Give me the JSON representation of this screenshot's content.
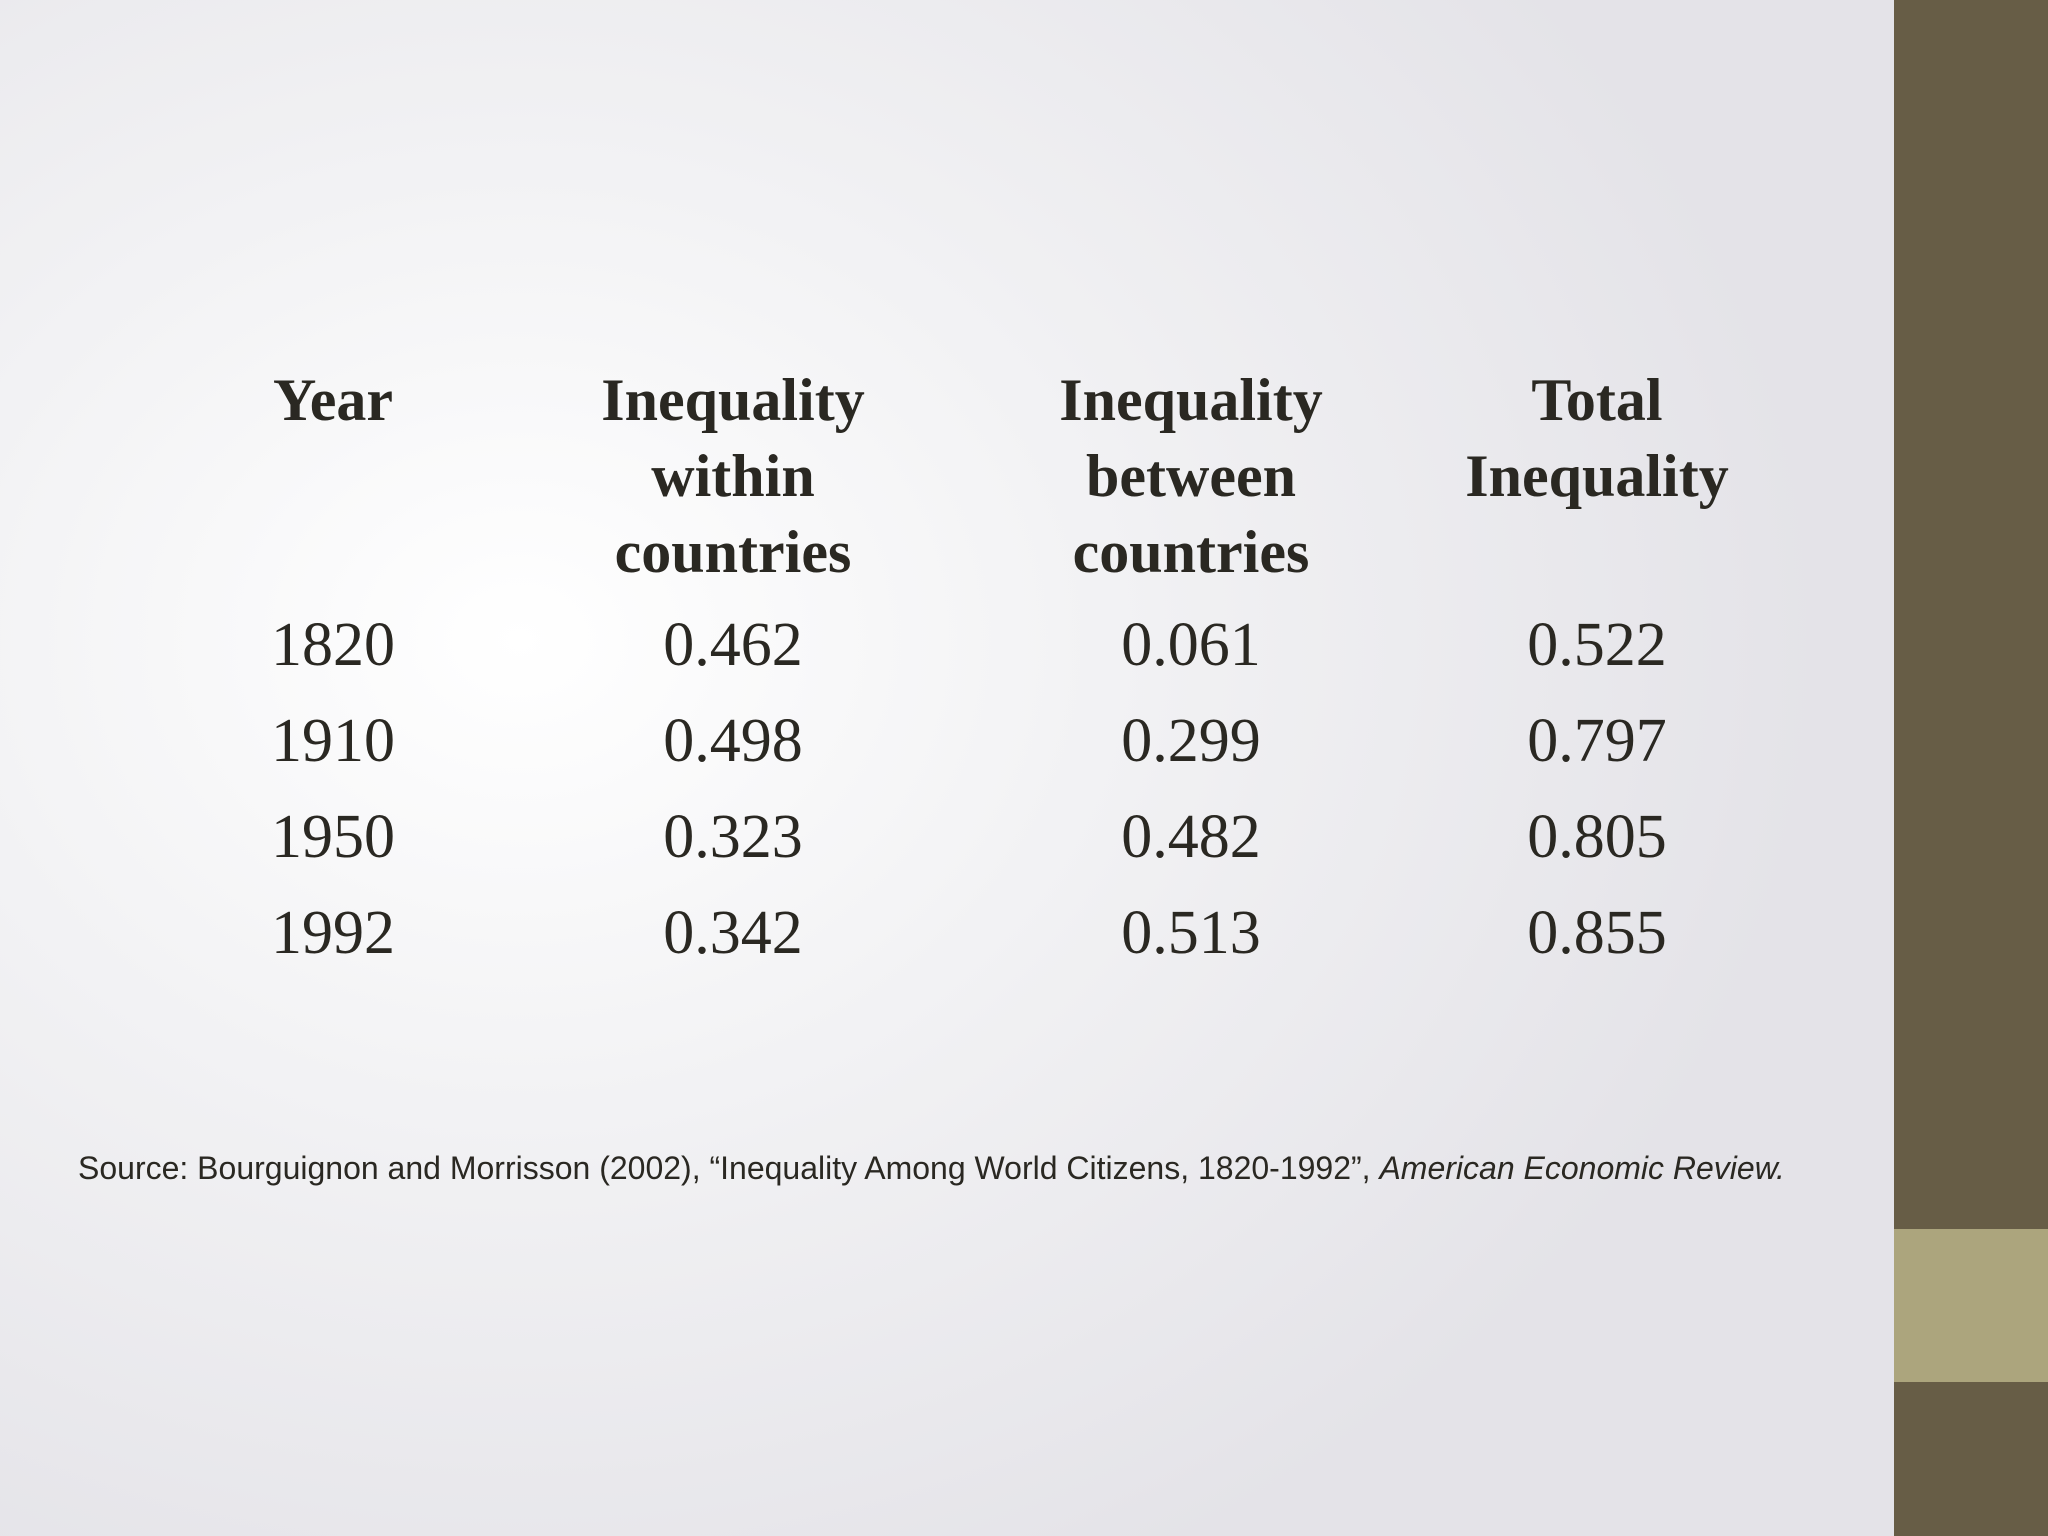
{
  "colors": {
    "side_band": "#675d46",
    "side_accent": "#aca57d",
    "text": "#2a2822"
  },
  "table": {
    "headers": [
      "Year",
      "Inequality within countries",
      "Inequality between countries",
      "Total Inequality"
    ],
    "header_lines": [
      [
        "Year"
      ],
      [
        "Inequality",
        "within",
        "countries"
      ],
      [
        "Inequality",
        "between",
        "countries"
      ],
      [
        "Total",
        "Inequality"
      ]
    ],
    "rows": [
      [
        "1820",
        "0.462",
        "0.061",
        "0.522"
      ],
      [
        "1910",
        "0.498",
        "0.299",
        "0.797"
      ],
      [
        "1950",
        "0.323",
        "0.482",
        "0.805"
      ],
      [
        "1992",
        "0.342",
        "0.513",
        "0.855"
      ]
    ]
  },
  "source": {
    "text": "Source: Bourguignon and Morrisson (2002), “Inequality Among World Citizens, 1820-1992”, ",
    "journal": "American Economic Review."
  }
}
